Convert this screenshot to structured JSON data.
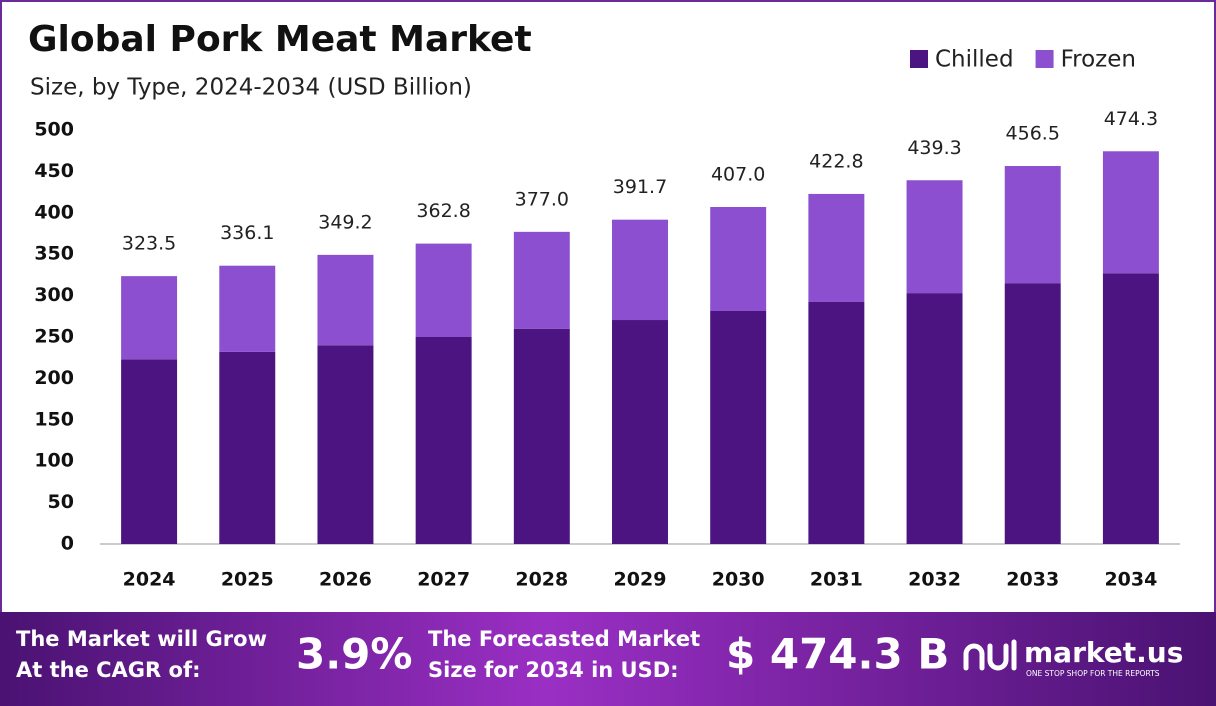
{
  "chart_data": {
    "type": "stacked_bar",
    "title": "Global Pork Meat Market",
    "subtitle": "Size, by Type, 2024-2034 (USD Billion)",
    "categories": [
      "2024",
      "2025",
      "2026",
      "2027",
      "2028",
      "2029",
      "2030",
      "2031",
      "2032",
      "2033",
      "2034"
    ],
    "series": [
      {
        "name": "Chilled",
        "color": "#4b1480",
        "values": [
          223,
          232,
          240,
          250,
          260,
          270.5,
          281.4,
          292.3,
          303,
          315,
          327
        ]
      },
      {
        "name": "Frozen",
        "color": "#8b4fd0",
        "values": [
          100.5,
          104.1,
          109.2,
          112.8,
          117,
          121.2,
          125.6,
          130.5,
          136.3,
          141.5,
          147.3
        ]
      }
    ],
    "totals": {
      "values": [
        323.5,
        336.1,
        349.2,
        362.8,
        377,
        391.7,
        407,
        422.8,
        439.3,
        456.5,
        474.3
      ],
      "value_labels": [
        "323.5",
        "336.1",
        "349.2",
        "362.8",
        "377.0",
        "391.7",
        "407.0",
        "422.8",
        "439.3",
        "456.5",
        "474.3"
      ]
    },
    "ylim": [
      0,
      500
    ],
    "yticks": [
      0,
      50,
      100,
      150,
      200,
      250,
      300,
      350,
      400,
      450,
      500
    ],
    "grid": false,
    "legend": "top-right"
  },
  "footer": {
    "cagr_text": [
      "The Market will Grow",
      "At the CAGR of:"
    ],
    "cagr_value": "3.9%",
    "forecast_text": [
      "The Forecasted Market",
      "Size for 2034 in USD:"
    ],
    "forecast_value": "$ 474.3 B",
    "brand": "market.us",
    "tagline": "ONE STOP SHOP FOR THE REPORTS"
  }
}
